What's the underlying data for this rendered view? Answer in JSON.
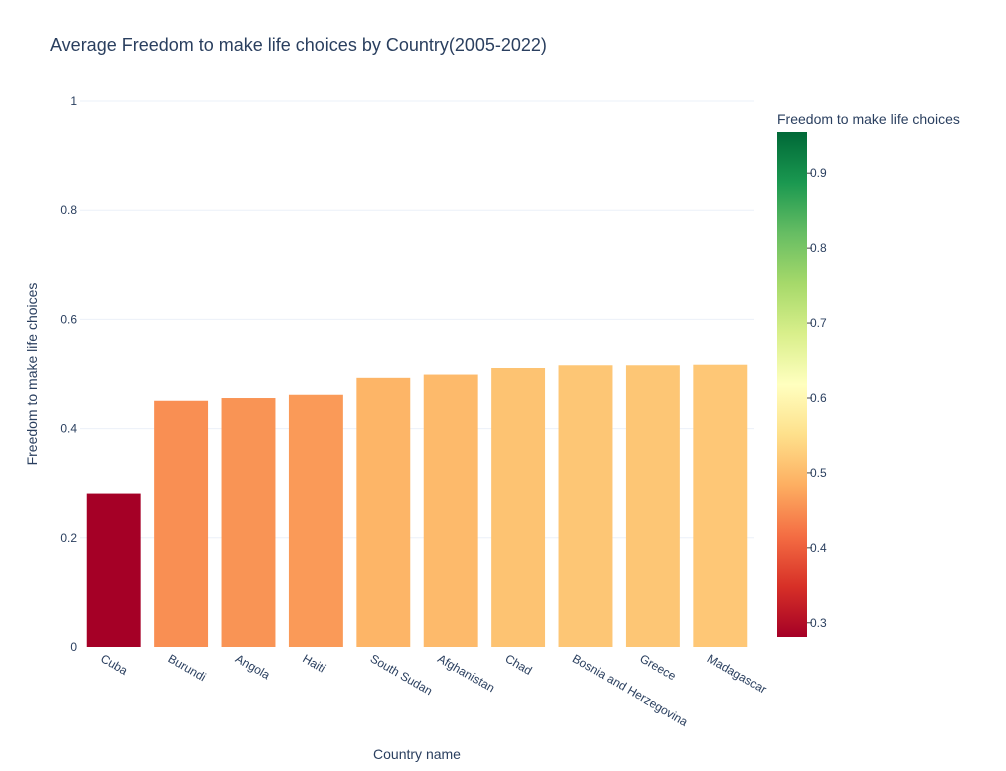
{
  "chart_data": {
    "type": "bar",
    "title": "Average Freedom to make life choices by Country(2005-2022)",
    "xlabel": "Country name",
    "ylabel": "Freedom to make life choices",
    "categories": [
      "Cuba",
      "Burundi",
      "Angola",
      "Haiti",
      "South Sudan",
      "Afghanistan",
      "Chad",
      "Bosnia and Herzegovina",
      "Greece",
      "Madagascar"
    ],
    "values": [
      0.281,
      0.451,
      0.456,
      0.462,
      0.493,
      0.499,
      0.511,
      0.516,
      0.516,
      0.517
    ],
    "ylim": [
      0,
      1
    ],
    "yticks": [
      0,
      0.2,
      0.4,
      0.6,
      0.8,
      1
    ],
    "ytick_labels": [
      "0",
      "0.2",
      "0.4",
      "0.6",
      "0.8",
      "1"
    ],
    "grid": true,
    "colorscale": "RdYlGn",
    "colorbar": {
      "title": "Freedom to make life choices",
      "range": [
        0.281,
        0.955
      ],
      "ticks": [
        0.3,
        0.4,
        0.5,
        0.6,
        0.7,
        0.8,
        0.9
      ],
      "tick_labels": [
        "0.3",
        "0.4",
        "0.5",
        "0.6",
        "0.7",
        "0.8",
        "0.9"
      ]
    },
    "legend": "none"
  }
}
